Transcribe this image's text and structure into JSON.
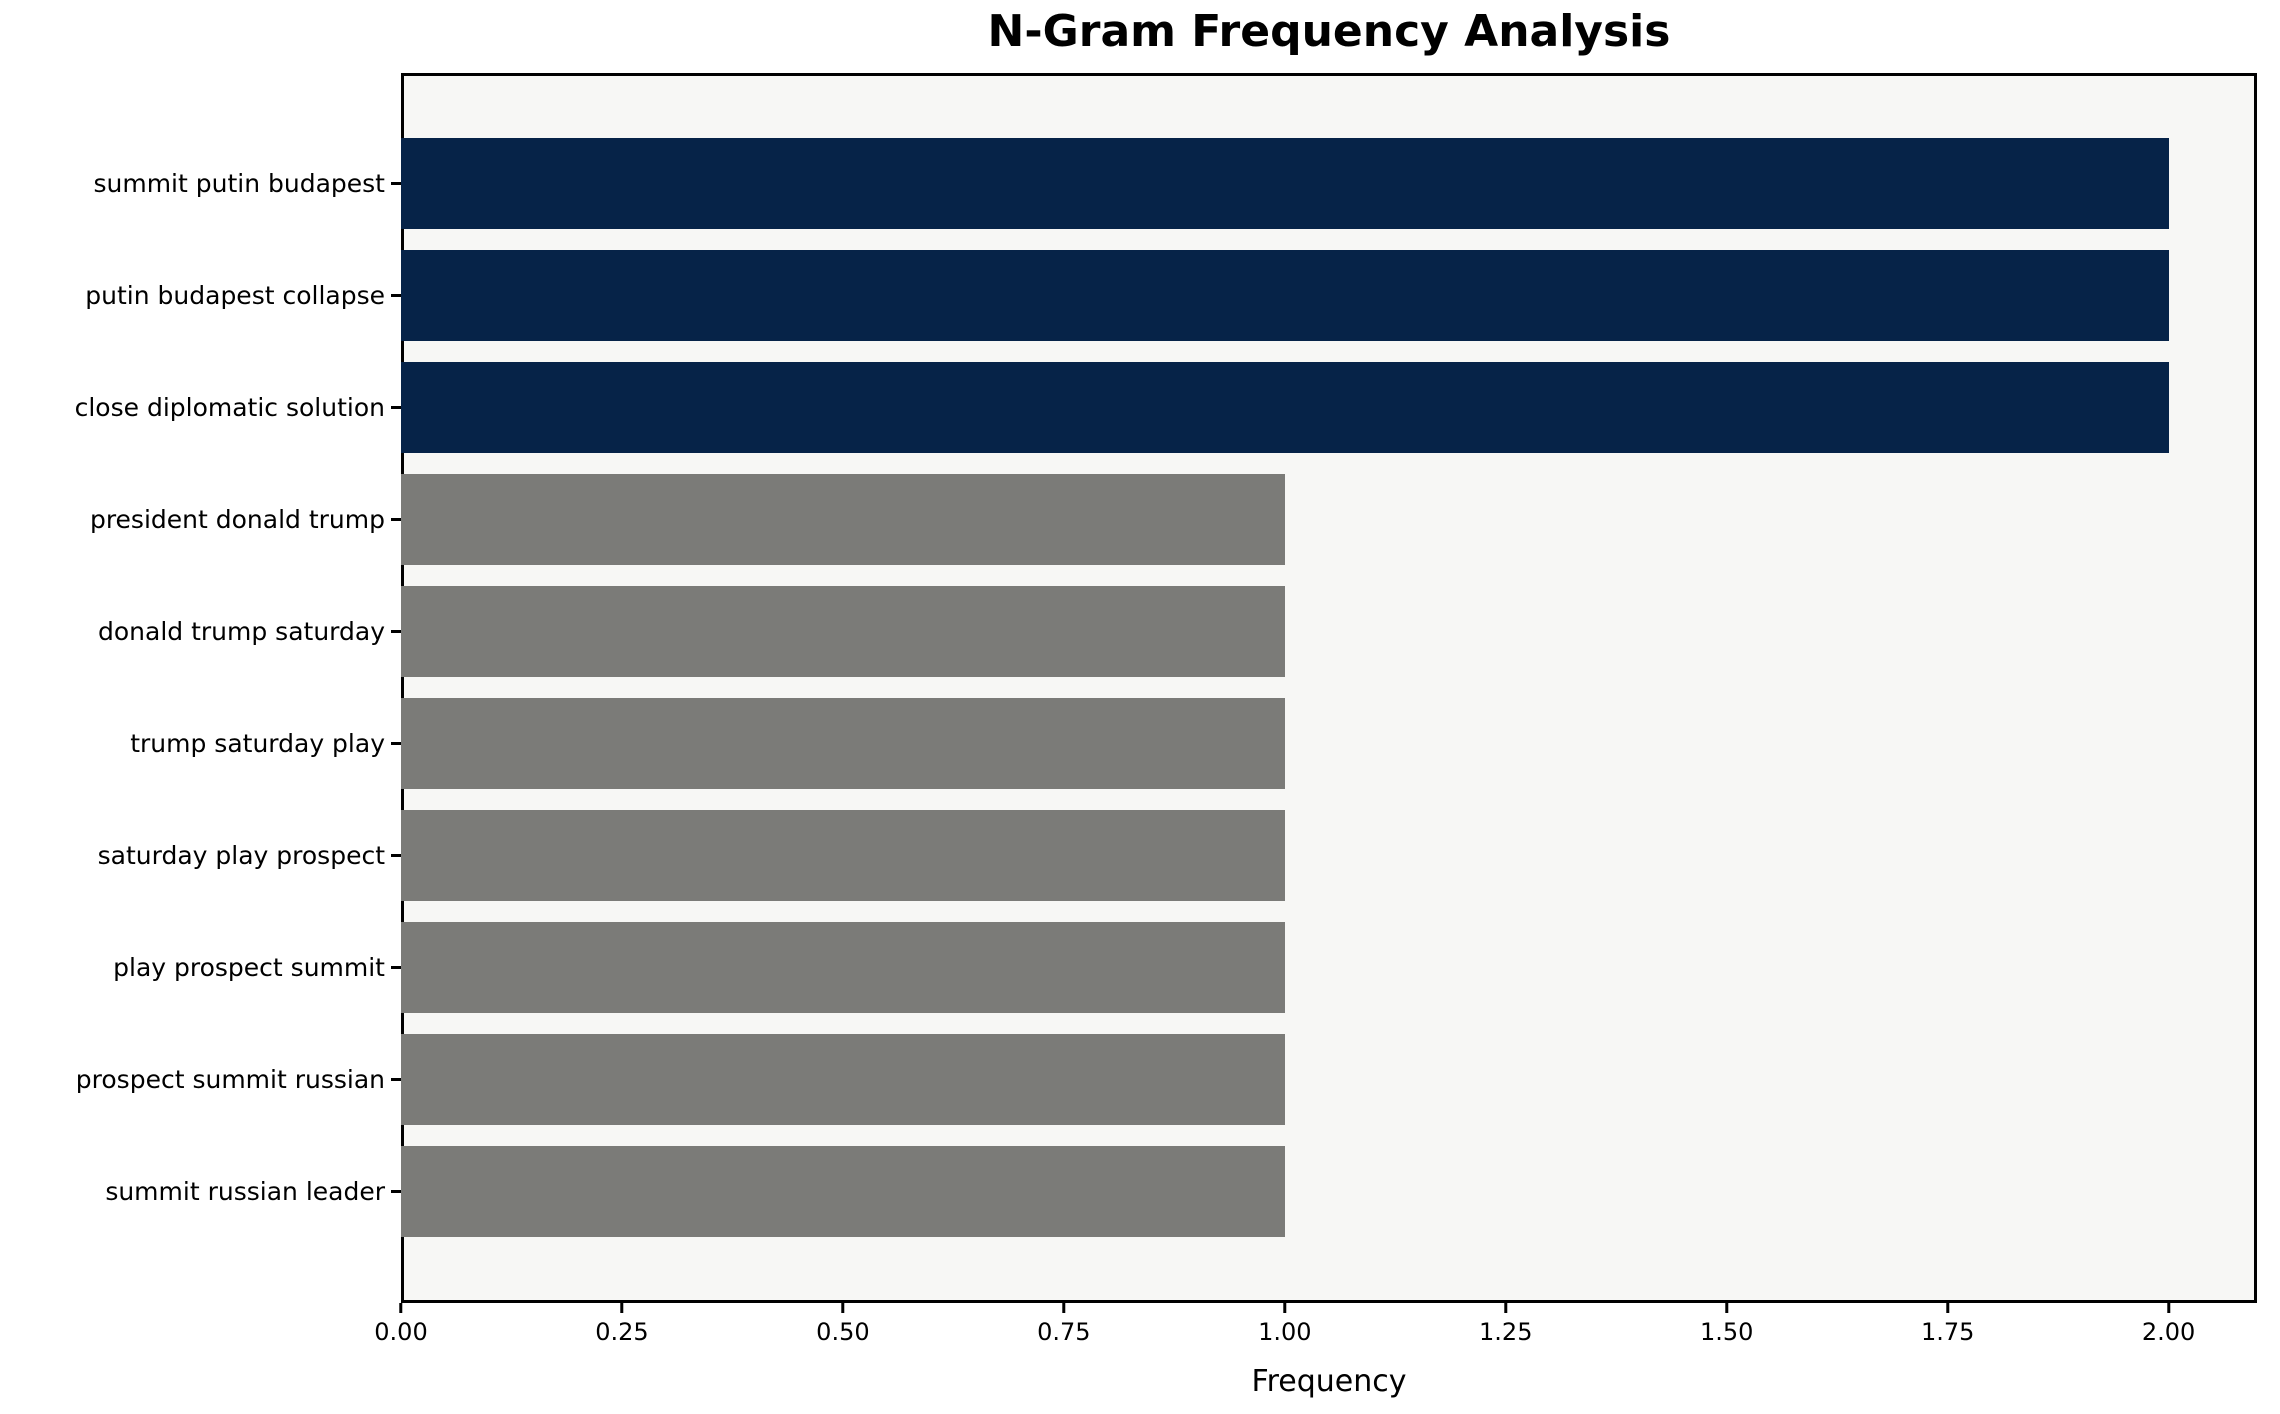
{
  "chart_data": {
    "type": "bar",
    "orientation": "horizontal",
    "title": "N-Gram Frequency Analysis",
    "xlabel": "Frequency",
    "ylabel": "",
    "categories": [
      "summit putin budapest",
      "putin budapest collapse",
      "close diplomatic solution",
      "president donald trump",
      "donald trump saturday",
      "trump saturday play",
      "saturday play prospect",
      "play prospect summit",
      "prospect summit russian",
      "summit russian leader"
    ],
    "values": [
      2,
      2,
      2,
      1,
      1,
      1,
      1,
      1,
      1,
      1
    ],
    "bar_colors": [
      "#062348",
      "#062348",
      "#062348",
      "#7b7b78",
      "#7b7b78",
      "#7b7b78",
      "#7b7b78",
      "#7b7b78",
      "#7b7b78",
      "#7b7b78"
    ],
    "xlim": [
      0,
      2.1
    ],
    "xticks": [
      0.0,
      0.25,
      0.5,
      0.75,
      1.0,
      1.25,
      1.5,
      1.75,
      2.0
    ],
    "xtick_labels": [
      "0.00",
      "0.25",
      "0.50",
      "0.75",
      "1.00",
      "1.25",
      "1.50",
      "1.75",
      "2.00"
    ],
    "grid": false,
    "legend_position": "none"
  },
  "colors": {
    "highlight_bar": "#062348",
    "default_bar": "#7b7b78",
    "plot_background": "#f7f7f5",
    "page_background": "#ffffff",
    "axis": "#000000"
  }
}
